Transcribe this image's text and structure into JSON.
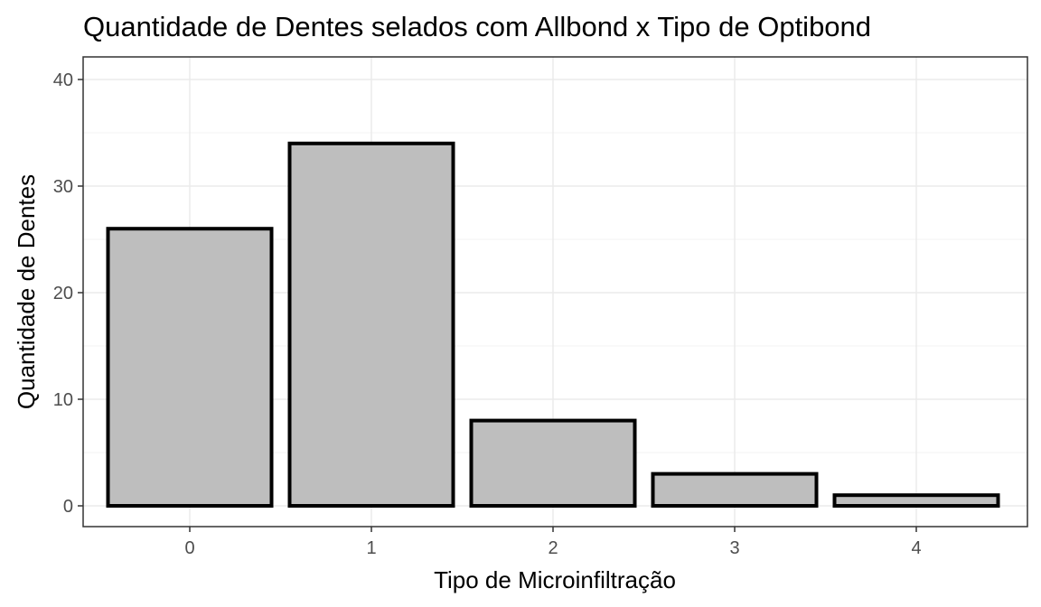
{
  "chart_data": {
    "type": "bar",
    "title": "Quantidade de Dentes selados com Allbond x Tipo de Optibond",
    "xlabel": "Tipo de Microinfiltração",
    "ylabel": "Quantidade de Dentes",
    "categories": [
      "0",
      "1",
      "2",
      "3",
      "4"
    ],
    "values": [
      26,
      34,
      8,
      3,
      1
    ],
    "ylim": [
      0,
      40
    ],
    "yticks": [
      0,
      10,
      20,
      30,
      40
    ],
    "grid": true,
    "bar_fill": "#bebebe",
    "bar_outline": "#000000"
  }
}
